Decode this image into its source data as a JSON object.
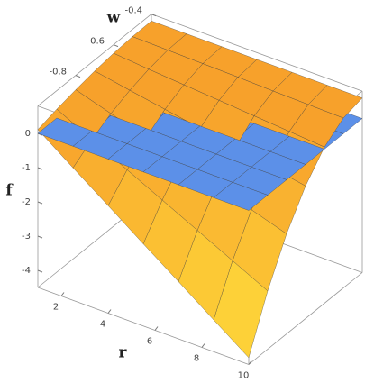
{
  "chart_data": {
    "type": "surface3d",
    "x_label": "r",
    "y_label": "w",
    "z_label": "f",
    "x": [
      1,
      2.5,
      4,
      5.5,
      7,
      8.5,
      10
    ],
    "y": [
      -1,
      -0.9,
      -0.8,
      -0.7,
      -0.6,
      -0.5,
      -0.4
    ],
    "xlim": [
      1,
      10
    ],
    "ylim": [
      -1,
      -0.4
    ],
    "zlim": [
      -4.5,
      0.8
    ],
    "xticks": [
      2,
      4,
      6,
      8,
      10
    ],
    "yticks": [
      -0.8,
      -0.6,
      -0.4
    ],
    "zticks": [
      -4,
      -3,
      -2,
      -1,
      0
    ],
    "series": [
      {
        "color": "#f7a12b",
        "values": [
          [
            0.11,
            -0.63,
            -1.36,
            -2.1,
            -2.83,
            -3.57,
            -4.3
          ],
          [
            0.26,
            -0.25,
            -0.76,
            -1.27,
            -1.78,
            -2.29,
            -2.8
          ],
          [
            0.38,
            0.06,
            -0.27,
            -0.6,
            -0.93,
            -1.25,
            -1.58
          ],
          [
            0.48,
            0.29,
            0.11,
            -0.07,
            -0.26,
            -0.44,
            -0.63
          ],
          [
            0.55,
            0.46,
            0.38,
            0.3,
            0.22,
            0.14,
            0.06
          ],
          [
            0.59,
            0.57,
            0.55,
            0.53,
            0.5,
            0.48,
            0.46
          ],
          [
            0.6,
            0.6,
            0.6,
            0.6,
            0.6,
            0.6,
            0.6
          ]
        ]
      },
      {
        "color": "#5c90e8",
        "values": [
          [
            0,
            0,
            0,
            0,
            0,
            0,
            0
          ],
          [
            0,
            0,
            0,
            0,
            0,
            0,
            0
          ],
          [
            0,
            0,
            0,
            0,
            0,
            0,
            0
          ],
          [
            0,
            0,
            0,
            0,
            0,
            0,
            0
          ],
          [
            0,
            0,
            0,
            0,
            0,
            0,
            0
          ],
          [
            0,
            0,
            0,
            0,
            0,
            0,
            0
          ],
          [
            0,
            0,
            0,
            0,
            0,
            0,
            0
          ]
        ]
      }
    ]
  }
}
